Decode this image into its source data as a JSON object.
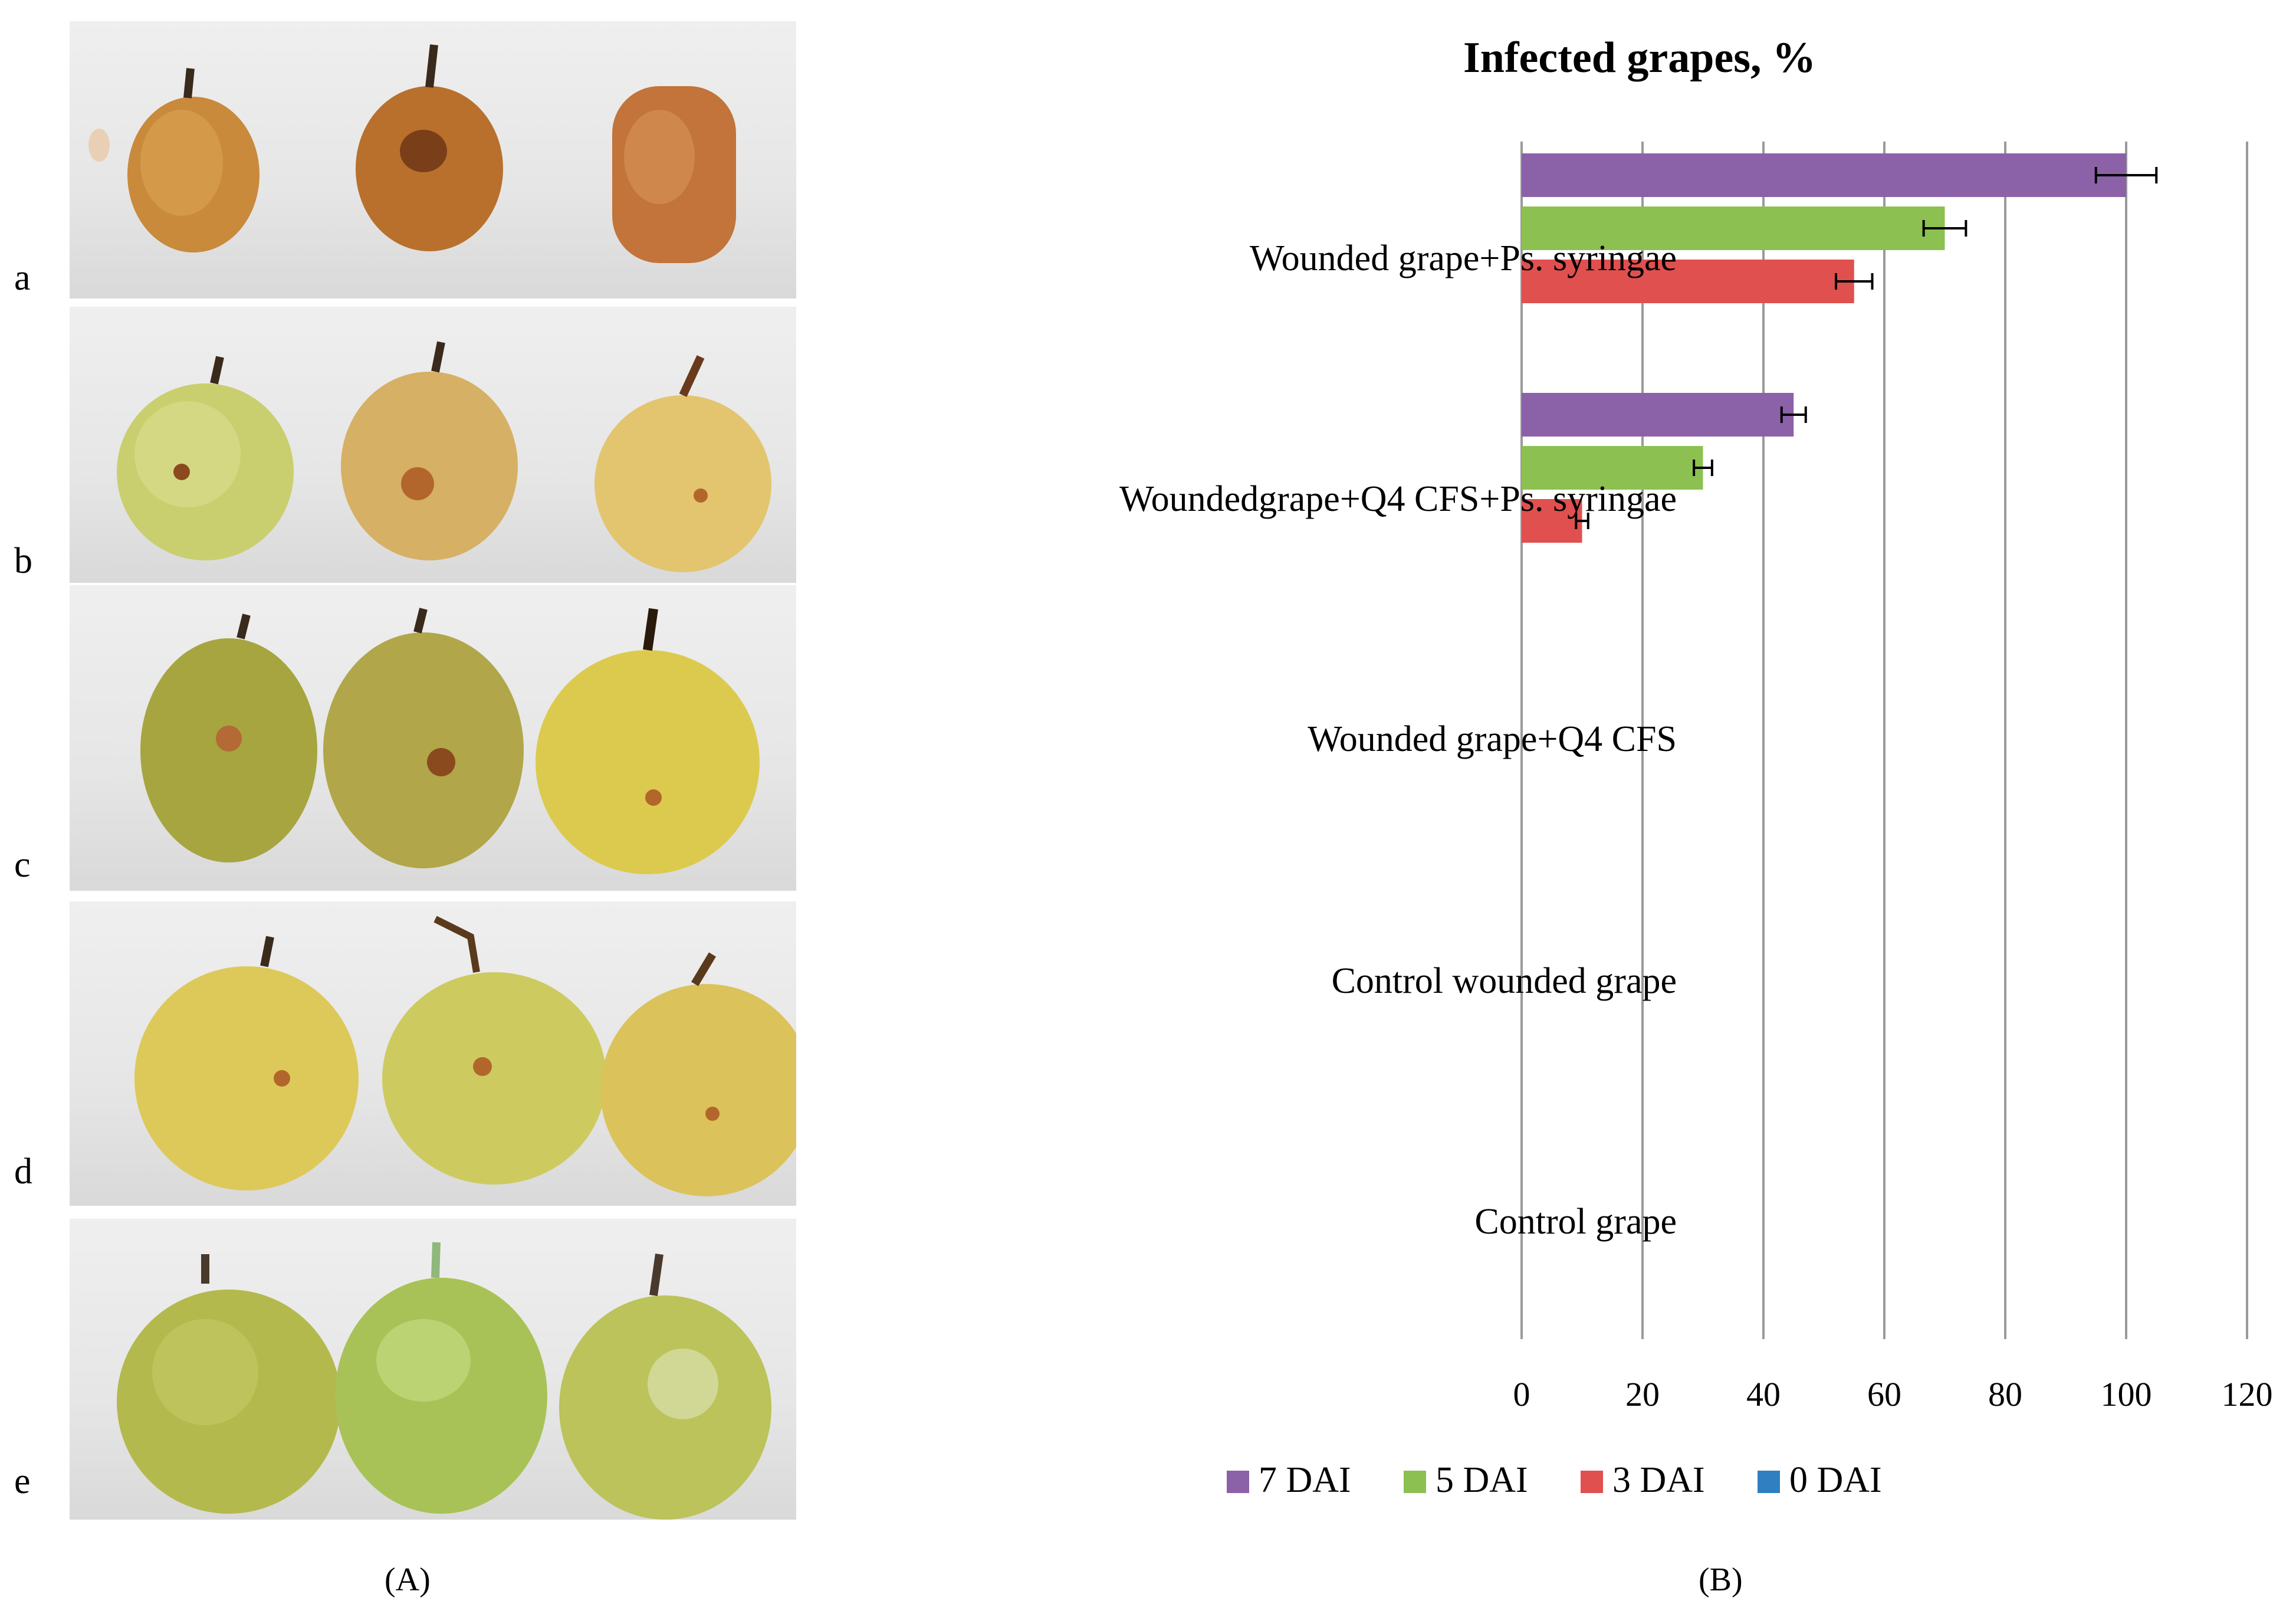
{
  "panel_a": {
    "caption": "(A)",
    "rows": [
      {
        "letter": "a"
      },
      {
        "letter": "b"
      },
      {
        "letter": "c"
      },
      {
        "letter": "d"
      },
      {
        "letter": "e"
      }
    ]
  },
  "panel_b": {
    "caption": "(B)"
  },
  "chart_data": {
    "type": "bar",
    "orientation": "horizontal",
    "title": "Infected grapes, %",
    "categories": [
      "Wounded grape+Ps. syringae",
      "Woundedgrape+Q4 CFS+Ps. syringae",
      "Wounded grape+Q4 CFS",
      "Control wounded grape",
      "Control grape"
    ],
    "series": [
      {
        "name": "7 DAI",
        "color": "#8b62a8",
        "values": [
          100,
          45,
          0,
          0,
          0
        ],
        "errors": [
          5,
          2,
          0,
          0,
          0
        ]
      },
      {
        "name": "5 DAI",
        "color": "#8cc152",
        "values": [
          70,
          30,
          0,
          0,
          0
        ],
        "errors": [
          3.5,
          1.5,
          0,
          0,
          0
        ]
      },
      {
        "name": "3 DAI",
        "color": "#e0504f",
        "values": [
          55,
          10,
          0,
          0,
          0
        ],
        "errors": [
          3,
          1,
          0,
          0,
          0
        ]
      },
      {
        "name": "0 DAI",
        "color": "#2f7fc1",
        "values": [
          0,
          0,
          0,
          0,
          0
        ],
        "errors": [
          0,
          0,
          0,
          0,
          0
        ]
      }
    ],
    "xlim": [
      0,
      120
    ],
    "ticks": [
      "0",
      "20",
      "40",
      "60",
      "80",
      "100",
      "120"
    ],
    "grid": true,
    "legend": "bottom"
  }
}
